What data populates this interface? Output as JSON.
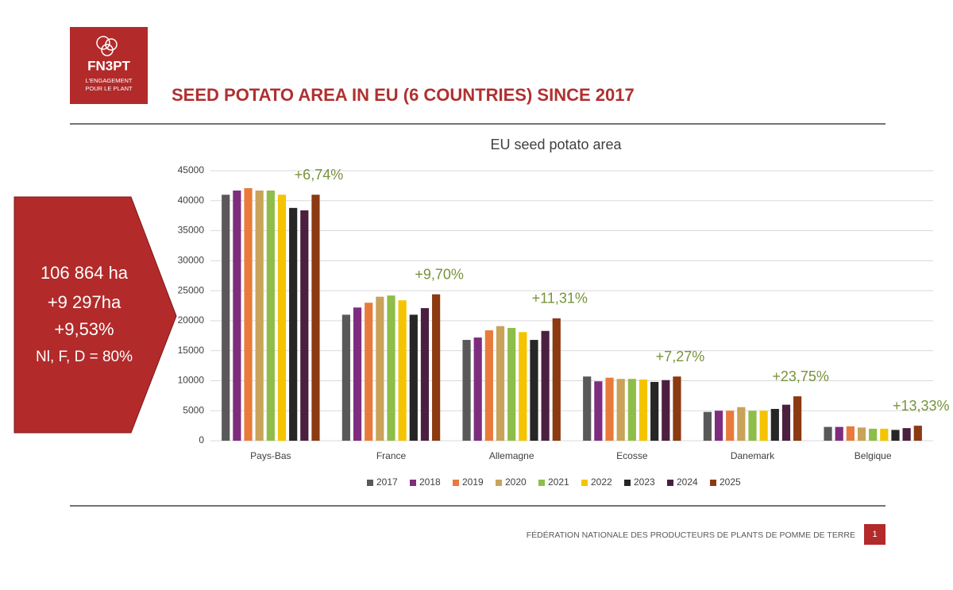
{
  "logo": {
    "name": "FN3PT",
    "tagline": [
      "L'ENGAGEMENT",
      "POUR LE PLANT"
    ]
  },
  "title": "SEED POTATO AREA IN EU (6 COUNTRIES) SINCE 2017",
  "callout": {
    "lines": [
      "106 864 ha",
      "+9 297ha",
      "+9,53%",
      "Nl, F, D = 80%"
    ]
  },
  "chart_data": {
    "type": "bar",
    "title": "EU seed potato area",
    "categories": [
      "Pays-Bas",
      "France",
      "Allemagne",
      "Ecosse",
      "Danemark",
      "Belgique"
    ],
    "series": [
      {
        "name": "2017",
        "color": "#595959",
        "values": [
          41000,
          21000,
          16800,
          10700,
          4800,
          2300
        ]
      },
      {
        "name": "2018",
        "color": "#7e2d7e",
        "values": [
          41700,
          22200,
          17200,
          9900,
          5000,
          2300
        ]
      },
      {
        "name": "2019",
        "color": "#e87b3c",
        "values": [
          42100,
          23000,
          18400,
          10500,
          5000,
          2400
        ]
      },
      {
        "name": "2020",
        "color": "#c9a35a",
        "values": [
          41700,
          24000,
          19100,
          10300,
          5600,
          2200
        ]
      },
      {
        "name": "2021",
        "color": "#8fbd4a",
        "values": [
          41700,
          24200,
          18800,
          10300,
          5000,
          2000
        ]
      },
      {
        "name": "2022",
        "color": "#f5c400",
        "values": [
          41000,
          23400,
          18100,
          10200,
          5000,
          2000
        ]
      },
      {
        "name": "2023",
        "color": "#262626",
        "values": [
          38800,
          21000,
          16800,
          9800,
          5300,
          1800
        ]
      },
      {
        "name": "2024",
        "color": "#4b1f3f",
        "values": [
          38400,
          22100,
          18300,
          10100,
          6000,
          2100
        ]
      },
      {
        "name": "2025",
        "color": "#8b3a12",
        "values": [
          41000,
          24400,
          20400,
          10700,
          7400,
          2500
        ]
      }
    ],
    "annotations": [
      "+6,74%",
      "+9,70%",
      "+11,31%",
      "+7,27%",
      "+23,75%",
      "+13,33%"
    ],
    "annotation_color": "#77933c",
    "ylim": [
      0,
      45000
    ],
    "yticks": [
      0,
      5000,
      10000,
      15000,
      20000,
      25000,
      30000,
      35000,
      40000,
      45000
    ],
    "grid": true,
    "legend": "bottom"
  },
  "footer": {
    "text": "FÉDÉRATION NATIONALE DES PRODUCTEURS DE PLANTS DE POMME DE TERRE",
    "page": "1"
  }
}
